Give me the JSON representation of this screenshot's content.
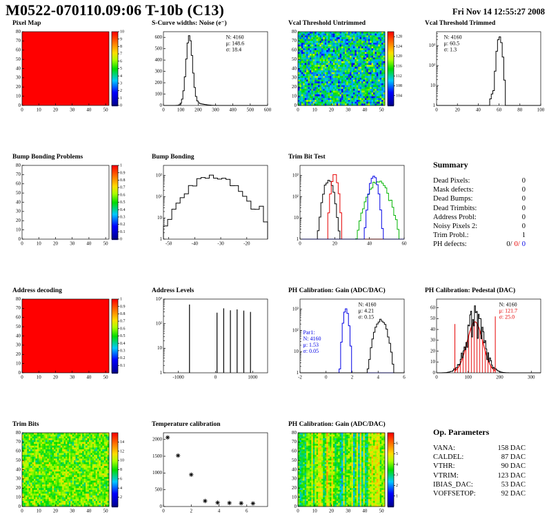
{
  "page": {
    "title": "M0522-070110.09:06 T-10b (C13)",
    "datetime": "Fri Nov 14 12:55:27 2008"
  },
  "summary": {
    "title": "Summary",
    "rows": [
      {
        "label": "Dead Pixels:",
        "value": "0"
      },
      {
        "label": "Mask defects:",
        "value": "0"
      },
      {
        "label": "Dead Bumps:",
        "value": "0"
      },
      {
        "label": "Dead Trimbits:",
        "value": "0"
      },
      {
        "label": "Address Probl:",
        "value": "0"
      },
      {
        "label": "Noisy Pixels 2:",
        "value": "0"
      },
      {
        "label": "Trim Probl.:",
        "value": "1"
      },
      {
        "label": "PH defects:",
        "parts": [
          {
            "text": "0/",
            "color": "#000000"
          },
          {
            "text": "0/",
            "color": "#e60000"
          },
          {
            "text": "0",
            "color": "#0000e6"
          }
        ]
      }
    ]
  },
  "op_parameters": {
    "title": "Op. Parameters",
    "rows": [
      {
        "label": "VANA:",
        "value": "158 DAC"
      },
      {
        "label": "CALDEL:",
        "value": "87 DAC"
      },
      {
        "label": "VTHR:",
        "value": "90 DAC"
      },
      {
        "label": "VTRIM:",
        "value": "123 DAC"
      },
      {
        "label": "IBIAS_DAC:",
        "value": "53 DAC"
      },
      {
        "label": "VOFFSETOP:",
        "value": "92 DAC"
      }
    ]
  },
  "chart_data": [
    {
      "type": "heatmap",
      "title": "Pixel Map",
      "pattern": "solid",
      "value_t": 1,
      "xlim": [
        0,
        52
      ],
      "ylim": [
        0,
        80
      ],
      "xticks": [
        0,
        10,
        20,
        30,
        40,
        50
      ],
      "yticks": [
        0,
        10,
        20,
        30,
        40,
        50,
        60,
        70,
        80
      ],
      "colorbar": {
        "min": 0,
        "max": 10,
        "ticks": [
          0,
          1,
          2,
          3,
          4,
          5,
          6,
          7,
          8,
          9,
          10
        ]
      }
    },
    {
      "type": "hist",
      "title": "S-Curve widths: Noise (e⁻)",
      "ylog": false,
      "xlim": [
        0,
        600
      ],
      "ylim": [
        0,
        650
      ],
      "xticks": [
        0,
        100,
        200,
        300,
        400,
        500,
        600
      ],
      "yticks": [
        0,
        100,
        200,
        300,
        400,
        500,
        600
      ],
      "series": [
        {
          "color": "#000000",
          "bin": 8,
          "components": [
            {
              "peak": 148.6,
              "sigma": 18.4,
              "amp": 605
            },
            {
              "peak": 190,
              "sigma": 40,
              "amp": 18
            }
          ]
        }
      ],
      "stats": [
        {
          "x": 0.6,
          "y": 0.04,
          "lines": [
            {
              "text": "N: 4160",
              "color": "#000000"
            },
            {
              "text": "μ: 148.6",
              "color": "#000000"
            },
            {
              "text": "σ: 18.4",
              "color": "#000000"
            }
          ]
        }
      ]
    },
    {
      "type": "heatmap",
      "title": "Vcal Threshold Untrimmed",
      "pattern": "noise",
      "mean": 0.4,
      "spread": 0.16,
      "xlim": [
        0,
        52
      ],
      "ylim": [
        0,
        80
      ],
      "xticks": [
        0,
        10,
        20,
        30,
        40,
        50
      ],
      "yticks": [
        0,
        10,
        20,
        30,
        40,
        50,
        60,
        70,
        80
      ],
      "colorbar": {
        "min": 100,
        "max": 130,
        "ticks": [
          104,
          108,
          112,
          116,
          120,
          124,
          128
        ]
      }
    },
    {
      "type": "hist",
      "title": "Vcal Threshold Trimmed",
      "ylog": true,
      "xlim": [
        0,
        100
      ],
      "ylim": [
        1,
        5000
      ],
      "xticks": [
        0,
        20,
        40,
        60,
        80,
        100
      ],
      "yticks": [
        1,
        10,
        100,
        1000
      ],
      "series": [
        {
          "color": "#000000",
          "bin": 1.5,
          "components": [
            {
              "peak": 60.5,
              "sigma": 1.5,
              "amp": 2800
            },
            {
              "peak": 54,
              "sigma": 2,
              "amp": 4
            }
          ]
        }
      ],
      "stats": [
        {
          "x": 0.07,
          "y": 0.04,
          "lines": [
            {
              "text": "N: 4160",
              "color": "#000000"
            },
            {
              "text": "μ: 60.5",
              "color": "#000000"
            },
            {
              "text": "σ: 1.3",
              "color": "#000000"
            }
          ]
        }
      ]
    },
    {
      "type": "heatmap",
      "title": "Bump Bonding Problems",
      "pattern": "empty",
      "xlim": [
        0,
        52
      ],
      "ylim": [
        0,
        80
      ],
      "xticks": [
        0,
        10,
        20,
        30,
        40,
        50
      ],
      "yticks": [
        0,
        10,
        20,
        30,
        40,
        50,
        60,
        70,
        80
      ],
      "colorbar": {
        "min": 0,
        "max": 1,
        "ticks": [
          0,
          0.1,
          0.2,
          0.3,
          0.4,
          0.5,
          0.6,
          0.7,
          0.8,
          0.9,
          1
        ]
      }
    },
    {
      "type": "hist",
      "title": "Bump Bonding",
      "ylog": true,
      "xlim": [
        -52,
        -12
      ],
      "ylim": [
        1,
        3000
      ],
      "xticks": [
        -50,
        -40,
        -30,
        -20
      ],
      "yticks": [
        1,
        10,
        100,
        1000
      ],
      "series": [
        {
          "color": "#000000",
          "bin": 1.6,
          "noise": 0.25,
          "components": [
            {
              "peak": -33,
              "sigma": 5.5,
              "amp": 950
            },
            {
              "peak": -23,
              "sigma": 2.5,
              "amp": 40
            },
            {
              "peak": -15,
              "sigma": 1.2,
              "amp": 30
            }
          ]
        }
      ]
    },
    {
      "type": "hist",
      "title": "Trim Bit Test",
      "ylog": true,
      "xlim": [
        0,
        60
      ],
      "ylim": [
        1,
        3000
      ],
      "xticks": [
        0,
        20,
        40,
        60
      ],
      "yticks": [
        1,
        10,
        100,
        1000
      ],
      "series": [
        {
          "color": "#000000",
          "bin": 1,
          "noise": 0.2,
          "components": [
            {
              "peak": 16.5,
              "sigma": 1.8,
              "amp": 550
            }
          ]
        },
        {
          "color": "#e60000",
          "bin": 1,
          "noise": 0.15,
          "components": [
            {
              "peak": 20,
              "sigma": 1.2,
              "amp": 1100
            }
          ]
        },
        {
          "color": "#00b400",
          "bin": 1,
          "noise": 0.3,
          "components": [
            {
              "peak": 45,
              "sigma": 3.6,
              "amp": 480
            }
          ]
        },
        {
          "color": "#0000e6",
          "bin": 1,
          "noise": 0.15,
          "components": [
            {
              "peak": 42.5,
              "sigma": 1.5,
              "amp": 900
            }
          ]
        }
      ]
    },
    {
      "type": "heatmap",
      "title": "Address decoding",
      "pattern": "solid",
      "value_t": 1,
      "xlim": [
        0,
        52
      ],
      "ylim": [
        0,
        80
      ],
      "xticks": [
        0,
        10,
        20,
        30,
        40,
        50
      ],
      "yticks": [
        0,
        10,
        20,
        30,
        40,
        50,
        60,
        70,
        80
      ],
      "colorbar": {
        "min": 0,
        "max": 1,
        "ticks": [
          0.1,
          0.2,
          0.3,
          0.4,
          0.5,
          0.6,
          0.7,
          0.8,
          0.9,
          1
        ]
      }
    },
    {
      "type": "spikes",
      "title": "Address Levels",
      "ylog": true,
      "xlim": [
        -1400,
        1400
      ],
      "ylim": [
        1,
        1000
      ],
      "xticks": [
        -1000,
        0,
        1000
      ],
      "yticks": [
        1,
        10,
        100,
        1000
      ],
      "points": [
        [
          -700,
          600
        ],
        [
          40,
          280
        ],
        [
          220,
          420
        ],
        [
          400,
          350
        ],
        [
          580,
          380
        ],
        [
          760,
          340
        ],
        [
          940,
          300
        ]
      ]
    },
    {
      "type": "hist",
      "title": "PH Calibration: Gain (ADC/DAC)",
      "ylog": true,
      "xlim": [
        -2,
        6
      ],
      "ylim": [
        1,
        3000
      ],
      "xticks": [
        -2,
        0,
        2,
        4,
        6
      ],
      "yticks": [
        1,
        10,
        100,
        1000
      ],
      "series": [
        {
          "color": "#0000e6",
          "bin": 0.12,
          "components": [
            {
              "peak": 1.53,
              "sigma": 0.13,
              "amp": 1050
            }
          ]
        },
        {
          "color": "#000000",
          "bin": 0.12,
          "noise": 0.15,
          "components": [
            {
              "peak": 4.21,
              "sigma": 0.3,
              "amp": 330
            }
          ]
        }
      ],
      "stats": [
        {
          "x": 0.56,
          "y": 0.04,
          "lines": [
            {
              "text": "N: 4160",
              "color": "#000000"
            },
            {
              "text": "μ: 4.21",
              "color": "#000000"
            },
            {
              "text": "σ: 0.15",
              "color": "#000000"
            }
          ]
        },
        {
          "x": 0.03,
          "y": 0.42,
          "lines": [
            {
              "text": "Par1:",
              "color": "#0000e6"
            },
            {
              "text": "N: 4160",
              "color": "#0000e6"
            },
            {
              "text": "μ: 1.53",
              "color": "#0000e6"
            },
            {
              "text": "σ: 0.05",
              "color": "#0000e6"
            }
          ]
        }
      ]
    },
    {
      "type": "hist",
      "title": "PH Calibration: Pedestal (DAC)",
      "ylog": false,
      "xlim": [
        0,
        330
      ],
      "ylim": [
        0,
        68
      ],
      "xticks": [
        0,
        100,
        200,
        300
      ],
      "yticks": [
        0,
        10,
        20,
        30,
        40,
        50,
        60
      ],
      "series": [
        {
          "color": "#e60000",
          "smooth": true,
          "fill": true,
          "range": [
            58,
            186
          ],
          "components": [
            {
              "peak": 121.7,
              "sigma": 25,
              "amp": 47
            }
          ]
        },
        {
          "color": "#000000",
          "bin": 3,
          "noise": 0.35,
          "components": [
            {
              "peak": 122,
              "sigma": 28,
              "amp": 48
            }
          ]
        }
      ],
      "vlines": [
        {
          "x": 58,
          "h": 45,
          "color": "#e60000"
        },
        {
          "x": 186,
          "h": 52,
          "color": "#e60000"
        }
      ],
      "stats": [
        {
          "x": 0.6,
          "y": 0.04,
          "lines": [
            {
              "text": "N: 4160",
              "color": "#000000"
            },
            {
              "text": "μ: 121.7",
              "color": "#e60000"
            },
            {
              "text": "σ: 25.0",
              "color": "#e60000"
            }
          ]
        }
      ]
    },
    {
      "type": "heatmap",
      "title": "Trim Bits",
      "pattern": "noise",
      "mean": 0.57,
      "spread": 0.1,
      "xlim": [
        0,
        52
      ],
      "ylim": [
        0,
        80
      ],
      "xticks": [
        0,
        10,
        20,
        30,
        40,
        50
      ],
      "yticks": [
        0,
        10,
        20,
        30,
        40,
        50,
        60,
        70,
        80
      ],
      "colorbar": {
        "min": 0,
        "max": 16,
        "ticks": [
          2,
          4,
          6,
          8,
          10,
          12,
          14
        ]
      }
    },
    {
      "type": "scatter",
      "title": "Temperature calibration",
      "xlim": [
        0,
        7.5
      ],
      "ylim": [
        0,
        2200
      ],
      "xticks": [
        0,
        2,
        4,
        6
      ],
      "yticks": [
        0,
        500,
        1000,
        1500,
        2000
      ],
      "points": [
        [
          0.3,
          2060
        ],
        [
          1.05,
          1520
        ],
        [
          2.0,
          950
        ],
        [
          3.0,
          165
        ],
        [
          3.9,
          115
        ],
        [
          4.75,
          105
        ],
        [
          5.6,
          98
        ],
        [
          6.45,
          92
        ]
      ]
    },
    {
      "type": "heatmap",
      "title": "PH Calibration: Gain (ADC/DAC)",
      "pattern": "stripes",
      "mean": 0.55,
      "colSpread": 0.18,
      "spread": 0.1,
      "xlim": [
        0,
        52
      ],
      "ylim": [
        0,
        80
      ],
      "xticks": [
        0,
        10,
        20,
        30,
        40,
        50
      ],
      "yticks": [
        0,
        10,
        20,
        30,
        40,
        50,
        60,
        70,
        80
      ],
      "colorbar": {
        "min": 0,
        "max": 7,
        "ticks": [
          1,
          2,
          3,
          4,
          5,
          6
        ]
      }
    }
  ]
}
